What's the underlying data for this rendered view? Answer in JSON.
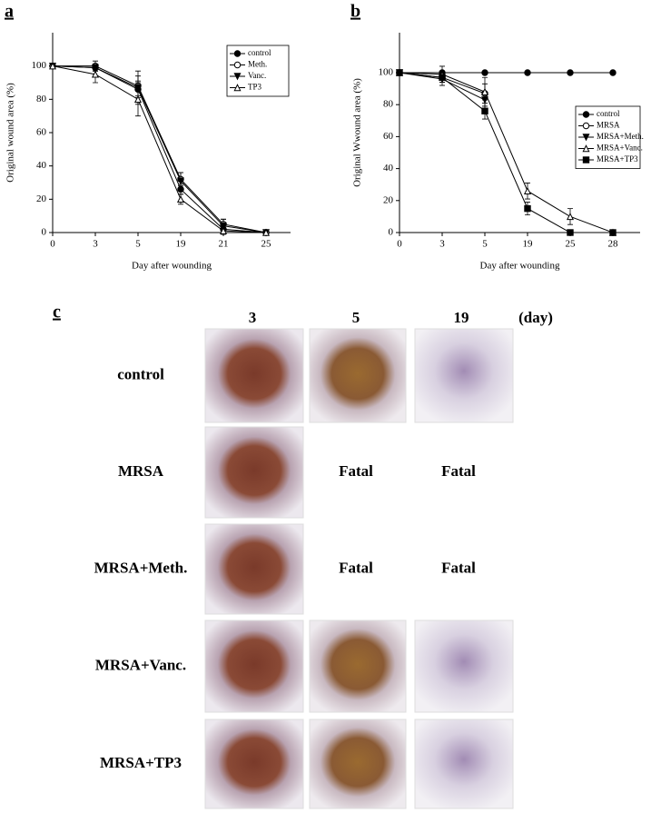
{
  "chart_data": [
    {
      "type": "line",
      "panel": "a",
      "x_label": "Day after wounding",
      "y_label": "Original wound area (%)",
      "categories": [
        "0",
        "3",
        "5",
        "19",
        "21",
        "25"
      ],
      "ylim": [
        0,
        120
      ],
      "yticks": [
        0,
        20,
        40,
        60,
        80,
        100
      ],
      "legend": "top-right",
      "series": [
        {
          "name": "control",
          "color": "#000000",
          "marker": "filled-circle",
          "values": [
            100,
            99,
            86,
            26,
            2,
            0
          ],
          "errors": [
            0,
            2,
            5,
            3,
            3,
            0
          ]
        },
        {
          "name": "Meth.",
          "color": "#000000",
          "marker": "open-circle",
          "values": [
            100,
            100,
            88,
            32,
            5,
            0
          ],
          "errors": [
            0,
            3,
            6,
            4,
            3,
            0
          ]
        },
        {
          "name": "Vanc.",
          "color": "#000000",
          "marker": "filled-triangle-down",
          "values": [
            100,
            99,
            87,
            31,
            4,
            0
          ],
          "errors": [
            0,
            2,
            10,
            5,
            4,
            0
          ]
        },
        {
          "name": "TP3",
          "color": "#000000",
          "marker": "open-triangle-up",
          "values": [
            100,
            95,
            80,
            20,
            1,
            0
          ],
          "errors": [
            0,
            5,
            10,
            3,
            2,
            0
          ]
        }
      ]
    },
    {
      "type": "line",
      "panel": "b",
      "x_label": "Day after wounding",
      "y_label": "Original Wwound area (%)",
      "categories": [
        "0",
        "3",
        "5",
        "19",
        "25",
        "28"
      ],
      "ylim": [
        0,
        125
      ],
      "yticks": [
        0,
        20,
        40,
        60,
        80,
        100
      ],
      "legend": "middle-right",
      "series": [
        {
          "name": "control",
          "color": "#000000",
          "marker": "filled-circle",
          "values": [
            100,
            100,
            100,
            100,
            100,
            100
          ],
          "errors": [
            0,
            0,
            0,
            0,
            0,
            0
          ]
        },
        {
          "name": "MRSA",
          "color": "#000000",
          "marker": "open-circle",
          "values": [
            100,
            97,
            87,
            null,
            null,
            null
          ],
          "errors": [
            0,
            3,
            10,
            null,
            null,
            null
          ]
        },
        {
          "name": "MRSA+Meth.",
          "color": "#000000",
          "marker": "filled-triangle-down",
          "values": [
            100,
            96,
            83,
            null,
            null,
            null
          ],
          "errors": [
            0,
            4,
            4,
            null,
            null,
            null
          ]
        },
        {
          "name": "MRSA+Vanc.",
          "color": "#000000",
          "marker": "open-triangle-up",
          "values": [
            100,
            99,
            88,
            26,
            10,
            0
          ],
          "errors": [
            0,
            5,
            5,
            5,
            5,
            0
          ]
        },
        {
          "name": "MRSA+TP3",
          "color": "#000000",
          "marker": "filled-square",
          "values": [
            100,
            97,
            76,
            15,
            0,
            0
          ],
          "errors": [
            0,
            3,
            5,
            4,
            0,
            0
          ]
        }
      ]
    }
  ],
  "photo_grid": {
    "panel": "c",
    "columns": [
      "3",
      "5",
      "19"
    ],
    "unit": "(day)",
    "rows": [
      {
        "label": "control"
      },
      {
        "label": "MRSA",
        "day5": "Fatal",
        "day19": "Fatal"
      },
      {
        "label": "MRSA+Meth.",
        "day5": "Fatal",
        "day19": "Fatal"
      },
      {
        "label": "MRSA+Vanc."
      },
      {
        "label": "MRSA+TP3"
      }
    ]
  }
}
